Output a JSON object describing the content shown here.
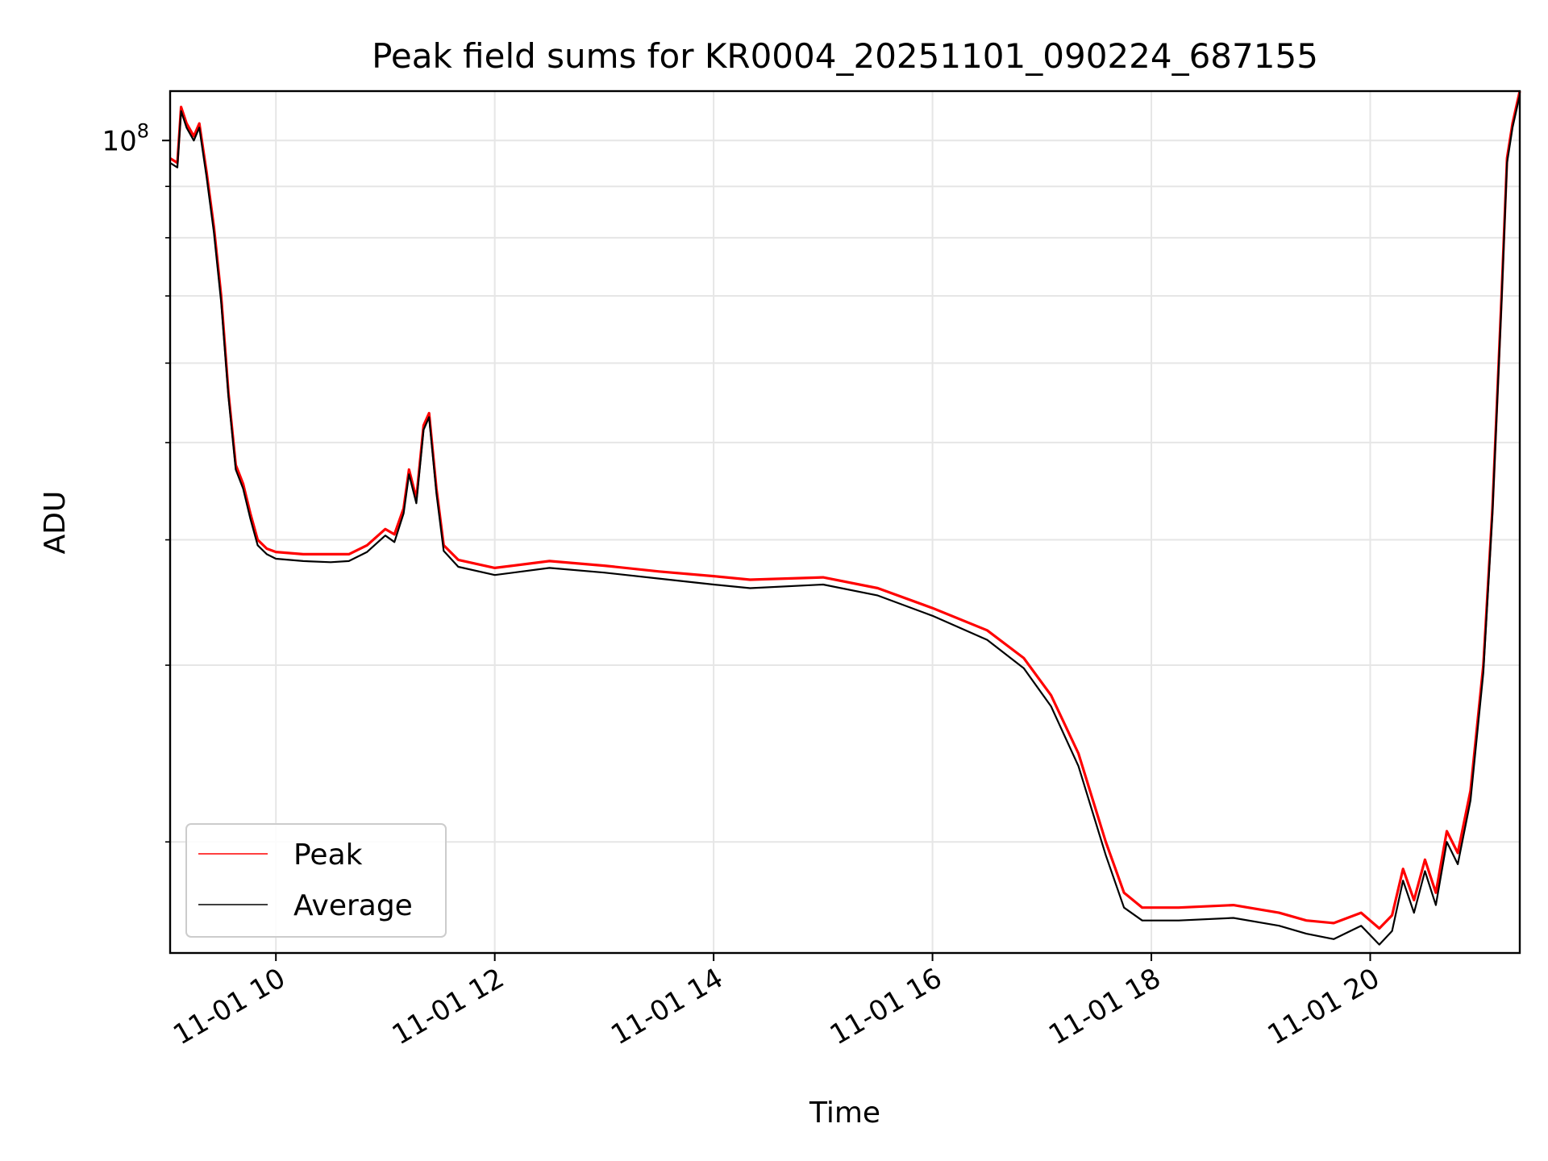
{
  "chart_data": {
    "type": "line",
    "title": "Peak field sums for KR0004_20251101_090224_687155",
    "xlabel": "Time",
    "ylabel": "ADU",
    "yscale": "log",
    "xlim": [
      "11-01 09:02",
      "11-01 21:22"
    ],
    "ylim": [
      15500000.0,
      112000000.0
    ],
    "x_ticks": [
      {
        "time": "11-01 10:00",
        "label": "11-01 10"
      },
      {
        "time": "11-01 12:00",
        "label": "11-01 12"
      },
      {
        "time": "11-01 14:00",
        "label": "11-01 14"
      },
      {
        "time": "11-01 16:00",
        "label": "11-01 16"
      },
      {
        "time": "11-01 18:00",
        "label": "11-01 18"
      },
      {
        "time": "11-01 20:00",
        "label": "11-01 20"
      }
    ],
    "y_ticks": [
      {
        "value": 100000000,
        "label": "10",
        "exponent": "8"
      }
    ],
    "y_minor_ticks": [
      20000000,
      30000000,
      40000000,
      50000000,
      60000000,
      70000000,
      80000000,
      90000000
    ],
    "grid": true,
    "legend": "lower-left",
    "series": [
      {
        "name": "Peak",
        "color": "#ff0000",
        "points": [
          [
            "11-01 09:02",
            96000000
          ],
          [
            "11-01 09:06",
            95000000
          ],
          [
            "11-01 09:08",
            108000000
          ],
          [
            "11-01 09:11",
            104000000
          ],
          [
            "11-01 09:15",
            101000000
          ],
          [
            "11-01 09:18",
            104000000
          ],
          [
            "11-01 09:22",
            93000000
          ],
          [
            "11-01 09:26",
            82000000
          ],
          [
            "11-01 09:30",
            70000000
          ],
          [
            "11-01 09:34",
            56000000
          ],
          [
            "11-01 09:38",
            47500000
          ],
          [
            "11-01 09:42",
            45500000
          ],
          [
            "11-01 09:46",
            42500000
          ],
          [
            "11-01 09:50",
            40000000
          ],
          [
            "11-01 09:55",
            39200000
          ],
          [
            "11-01 10:00",
            38900000
          ],
          [
            "11-01 10:15",
            38700000
          ],
          [
            "11-01 10:30",
            38700000
          ],
          [
            "11-01 10:40",
            38700000
          ],
          [
            "11-01 10:50",
            39500000
          ],
          [
            "11-01 11:00",
            41000000
          ],
          [
            "11-01 11:05",
            40500000
          ],
          [
            "11-01 11:10",
            43000000
          ],
          [
            "11-01 11:13",
            47000000
          ],
          [
            "11-01 11:17",
            44000000
          ],
          [
            "11-01 11:21",
            52000000
          ],
          [
            "11-01 11:24",
            53500000
          ],
          [
            "11-01 11:28",
            45000000
          ],
          [
            "11-01 11:32",
            39500000
          ],
          [
            "11-01 11:40",
            38200000
          ],
          [
            "11-01 12:00",
            37500000
          ],
          [
            "11-01 12:30",
            38100000
          ],
          [
            "11-01 13:00",
            37700000
          ],
          [
            "11-01 13:30",
            37200000
          ],
          [
            "11-01 14:00",
            36800000
          ],
          [
            "11-01 14:20",
            36500000
          ],
          [
            "11-01 15:00",
            36700000
          ],
          [
            "11-01 15:30",
            35800000
          ],
          [
            "11-01 16:00",
            34200000
          ],
          [
            "11-01 16:30",
            32500000
          ],
          [
            "11-01 16:50",
            30500000
          ],
          [
            "11-01 17:05",
            28000000
          ],
          [
            "11-01 17:20",
            24500000
          ],
          [
            "11-01 17:35",
            20000000
          ],
          [
            "11-01 17:45",
            17800000
          ],
          [
            "11-01 17:55",
            17200000
          ],
          [
            "11-01 18:15",
            17200000
          ],
          [
            "11-01 18:45",
            17300000
          ],
          [
            "11-01 19:10",
            17000000
          ],
          [
            "11-01 19:25",
            16700000
          ],
          [
            "11-01 19:40",
            16600000
          ],
          [
            "11-01 19:55",
            17000000
          ],
          [
            "11-01 20:05",
            16400000
          ],
          [
            "11-01 20:12",
            16900000
          ],
          [
            "11-01 20:18",
            18800000
          ],
          [
            "11-01 20:24",
            17500000
          ],
          [
            "11-01 20:30",
            19200000
          ],
          [
            "11-01 20:36",
            17800000
          ],
          [
            "11-01 20:42",
            20500000
          ],
          [
            "11-01 20:48",
            19500000
          ],
          [
            "11-01 20:55",
            22500000
          ],
          [
            "11-01 21:02",
            30000000
          ],
          [
            "11-01 21:07",
            43000000
          ],
          [
            "11-01 21:12",
            70000000
          ],
          [
            "11-01 21:15",
            96000000
          ],
          [
            "11-01 21:18",
            104000000
          ],
          [
            "11-01 21:22",
            112000000
          ]
        ]
      },
      {
        "name": "Average",
        "color": "#000000",
        "points": [
          [
            "11-01 09:02",
            95000000
          ],
          [
            "11-01 09:06",
            94000000
          ],
          [
            "11-01 09:08",
            107000000
          ],
          [
            "11-01 09:11",
            103000000
          ],
          [
            "11-01 09:15",
            100000000
          ],
          [
            "11-01 09:18",
            103000000
          ],
          [
            "11-01 09:22",
            92000000
          ],
          [
            "11-01 09:26",
            81000000
          ],
          [
            "11-01 09:30",
            69000000
          ],
          [
            "11-01 09:34",
            55500000
          ],
          [
            "11-01 09:38",
            47000000
          ],
          [
            "11-01 09:42",
            45000000
          ],
          [
            "11-01 09:46",
            42000000
          ],
          [
            "11-01 09:50",
            39500000
          ],
          [
            "11-01 09:55",
            38700000
          ],
          [
            "11-01 10:00",
            38300000
          ],
          [
            "11-01 10:15",
            38100000
          ],
          [
            "11-01 10:30",
            38000000
          ],
          [
            "11-01 10:40",
            38100000
          ],
          [
            "11-01 10:50",
            38900000
          ],
          [
            "11-01 11:00",
            40400000
          ],
          [
            "11-01 11:05",
            39800000
          ],
          [
            "11-01 11:10",
            42500000
          ],
          [
            "11-01 11:13",
            46500000
          ],
          [
            "11-01 11:17",
            43500000
          ],
          [
            "11-01 11:21",
            51500000
          ],
          [
            "11-01 11:24",
            53000000
          ],
          [
            "11-01 11:28",
            44500000
          ],
          [
            "11-01 11:32",
            39000000
          ],
          [
            "11-01 11:40",
            37600000
          ],
          [
            "11-01 12:00",
            36900000
          ],
          [
            "11-01 12:30",
            37500000
          ],
          [
            "11-01 13:00",
            37100000
          ],
          [
            "11-01 13:30",
            36600000
          ],
          [
            "11-01 14:00",
            36100000
          ],
          [
            "11-01 14:20",
            35800000
          ],
          [
            "11-01 15:00",
            36100000
          ],
          [
            "11-01 15:30",
            35200000
          ],
          [
            "11-01 16:00",
            33600000
          ],
          [
            "11-01 16:30",
            31800000
          ],
          [
            "11-01 16:50",
            29800000
          ],
          [
            "11-01 17:05",
            27300000
          ],
          [
            "11-01 17:20",
            23800000
          ],
          [
            "11-01 17:35",
            19400000
          ],
          [
            "11-01 17:45",
            17200000
          ],
          [
            "11-01 17:55",
            16700000
          ],
          [
            "11-01 18:15",
            16700000
          ],
          [
            "11-01 18:45",
            16800000
          ],
          [
            "11-01 19:10",
            16500000
          ],
          [
            "11-01 19:25",
            16200000
          ],
          [
            "11-01 19:40",
            16000000
          ],
          [
            "11-01 19:55",
            16500000
          ],
          [
            "11-01 20:05",
            15800000
          ],
          [
            "11-01 20:12",
            16300000
          ],
          [
            "11-01 20:18",
            18300000
          ],
          [
            "11-01 20:24",
            17000000
          ],
          [
            "11-01 20:30",
            18700000
          ],
          [
            "11-01 20:36",
            17300000
          ],
          [
            "11-01 20:42",
            20000000
          ],
          [
            "11-01 20:48",
            19000000
          ],
          [
            "11-01 20:55",
            22000000
          ],
          [
            "11-01 21:02",
            29500000
          ],
          [
            "11-01 21:07",
            42500000
          ],
          [
            "11-01 21:12",
            69000000
          ],
          [
            "11-01 21:15",
            95000000
          ],
          [
            "11-01 21:18",
            103000000
          ],
          [
            "11-01 21:22",
            111000000
          ]
        ]
      }
    ]
  }
}
